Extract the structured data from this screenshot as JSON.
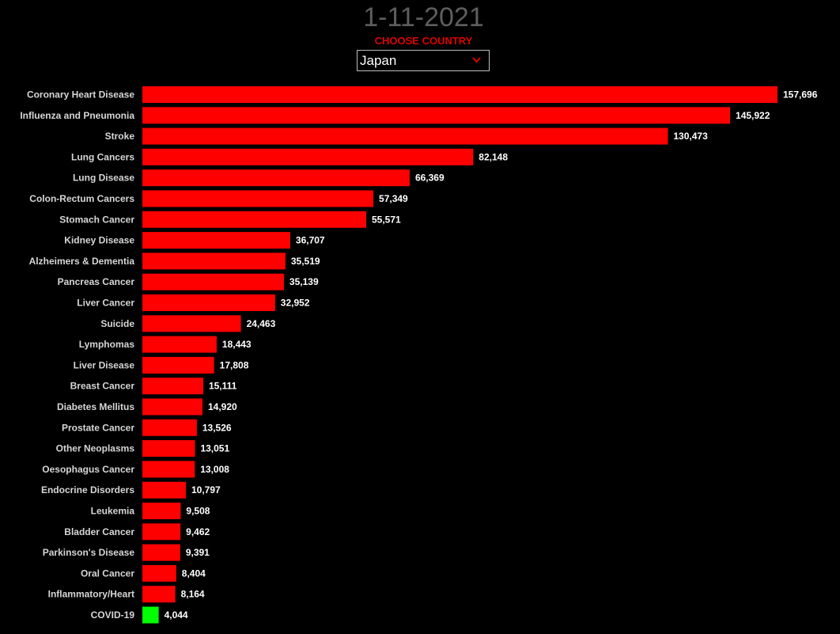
{
  "header": {
    "date": "1-11-2021",
    "choose_label": "CHOOSE COUNTRY",
    "country": "Japan",
    "dropdown_icon": "chevron-down-icon"
  },
  "colors": {
    "bar": "#ff0000",
    "highlight_bar": "#00ff00",
    "background": "#000000",
    "title": "#5e5e5e",
    "accent": "#e00000"
  },
  "chart_data": {
    "type": "bar",
    "orientation": "horizontal",
    "title": "",
    "xlabel": "",
    "ylabel": "",
    "grid": false,
    "legend": "none",
    "highlight": "COVID-19",
    "categories": [
      "Coronary Heart Disease",
      "Influenza and Pneumonia",
      "Stroke",
      "Lung Cancers",
      "Lung Disease",
      "Colon-Rectum Cancers",
      "Stomach Cancer",
      "Kidney Disease",
      "Alzheimers & Dementia",
      "Pancreas Cancer",
      "Liver Cancer",
      "Suicide",
      "Lymphomas",
      "Liver Disease",
      "Breast Cancer",
      "Diabetes Mellitus",
      "Prostate Cancer",
      "Other Neoplasms",
      "Oesophagus Cancer",
      "Endocrine Disorders",
      "Leukemia",
      "Bladder Cancer",
      "Parkinson's Disease",
      "Oral Cancer",
      "Inflammatory/Heart",
      "COVID-19"
    ],
    "values": [
      157696,
      145922,
      130473,
      82148,
      66369,
      57349,
      55571,
      36707,
      35519,
      35139,
      32952,
      24463,
      18443,
      17808,
      15111,
      14920,
      13526,
      13051,
      13008,
      10797,
      9508,
      9462,
      9391,
      8404,
      8164,
      4044
    ],
    "value_labels": [
      "157,696",
      "145,922",
      "130,473",
      "82,148",
      "66,369",
      "57,349",
      "55,571",
      "36,707",
      "35,519",
      "35,139",
      "32,952",
      "24,463",
      "18,443",
      "17,808",
      "15,111",
      "14,920",
      "13,526",
      "13,051",
      "13,008",
      "10,797",
      "9,508",
      "9,462",
      "9,391",
      "8,404",
      "8,164",
      "4,044"
    ]
  }
}
